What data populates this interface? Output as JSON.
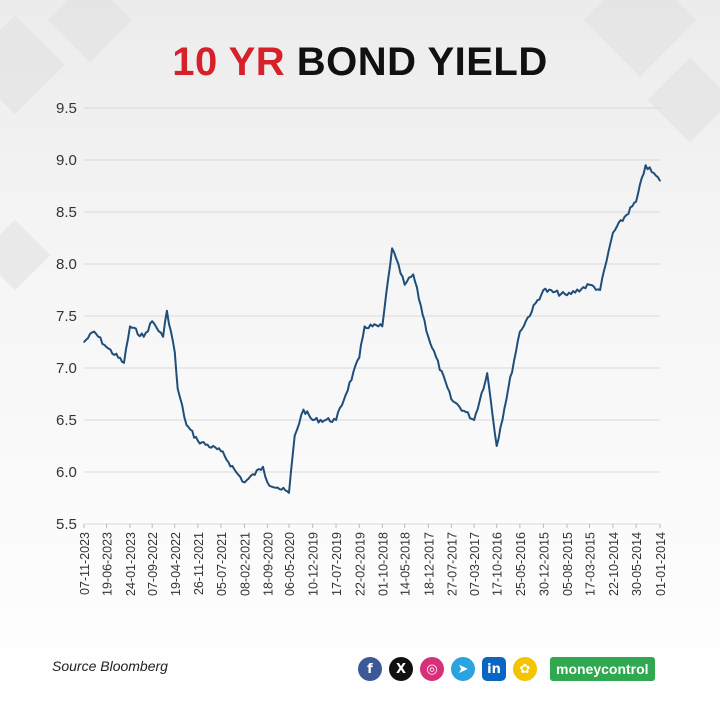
{
  "title": {
    "part1": "10 YR",
    "part2": "BOND YIELD"
  },
  "source": "Source Bloomberg",
  "social": [
    {
      "name": "facebook-icon",
      "glyph": "f",
      "color": "#3b5998"
    },
    {
      "name": "x-icon",
      "glyph": "X",
      "color": "#111111"
    },
    {
      "name": "instagram-icon",
      "glyph": "◎",
      "color": "#d6307a"
    },
    {
      "name": "telegram-icon",
      "glyph": "➤",
      "color": "#2aa3df"
    },
    {
      "name": "linkedin-icon",
      "glyph": "in",
      "color": "#0a66c2"
    },
    {
      "name": "snapchat-icon",
      "glyph": "✿",
      "color": "#f2c500"
    }
  ],
  "brand": "moneycontrol",
  "colors": {
    "line": "#1f4e7a",
    "accent": "#d6202a",
    "brand": "#2fa84f"
  },
  "chart_data": {
    "type": "line",
    "title": "10 YR BOND YIELD",
    "xlabel": "",
    "ylabel": "",
    "ylim": [
      5.5,
      9.5
    ],
    "yticks": [
      "9.5",
      "9.0",
      "8.5",
      "8.0",
      "7.5",
      "7.0",
      "6.5",
      "6.0",
      "5.5"
    ],
    "grid": true,
    "x_order": "newest-left",
    "xtick_labels": [
      "07-11-2023",
      "19-06-2023",
      "24-01-2023",
      "07-09-2022",
      "19-04-2022",
      "26-11-2021",
      "05-07-2021",
      "08-02-2021",
      "18-09-2020",
      "06-05-2020",
      "10-12-2019",
      "17-07-2019",
      "22-02-2019",
      "01-10-2018",
      "14-05-2018",
      "18-12-2017",
      "27-07-2017",
      "07-03-2017",
      "17-10-2016",
      "25-05-2016",
      "30-12-2015",
      "05-08-2015",
      "17-03-2015",
      "22-10-2014",
      "30-05-2014",
      "01-01-2014"
    ],
    "series": [
      {
        "name": "",
        "x": [
          "07-11-2023",
          "05-09-2023",
          "19-06-2023",
          "02-03-2023",
          "24-01-2023",
          "30-10-2022",
          "07-09-2022",
          "01-07-2022",
          "07-06-2022",
          "19-04-2022",
          "01-04-2022",
          "04-02-2022",
          "26-11-2021",
          "05-07-2021",
          "01-04-2021",
          "08-02-2021",
          "15-10-2020",
          "18-09-2020",
          "15-07-2020",
          "06-05-2020",
          "31-03-2020",
          "05-02-2020",
          "10-12-2019",
          "17-07-2019",
          "22-02-2019",
          "20-01-2019",
          "01-10-2018",
          "01-08-2018",
          "14-05-2018",
          "22-03-2018",
          "18-12-2017",
          "27-07-2017",
          "07-03-2017",
          "15-12-2016",
          "17-10-2016",
          "25-05-2016",
          "30-12-2015",
          "05-08-2015",
          "17-03-2015",
          "10-01-2015",
          "22-10-2014",
          "30-05-2014",
          "01-04-2014",
          "01-01-2014"
        ],
        "values": [
          7.25,
          7.35,
          7.2,
          7.05,
          7.4,
          7.3,
          7.45,
          7.3,
          7.55,
          7.15,
          6.8,
          6.45,
          6.3,
          6.2,
          6.0,
          5.9,
          6.05,
          5.9,
          5.85,
          5.8,
          6.35,
          6.6,
          6.5,
          6.5,
          7.1,
          7.4,
          7.4,
          8.15,
          7.8,
          7.9,
          7.3,
          6.7,
          6.5,
          6.95,
          6.25,
          7.35,
          7.75,
          7.7,
          7.8,
          7.75,
          8.3,
          8.6,
          8.95,
          8.8
        ]
      }
    ]
  }
}
